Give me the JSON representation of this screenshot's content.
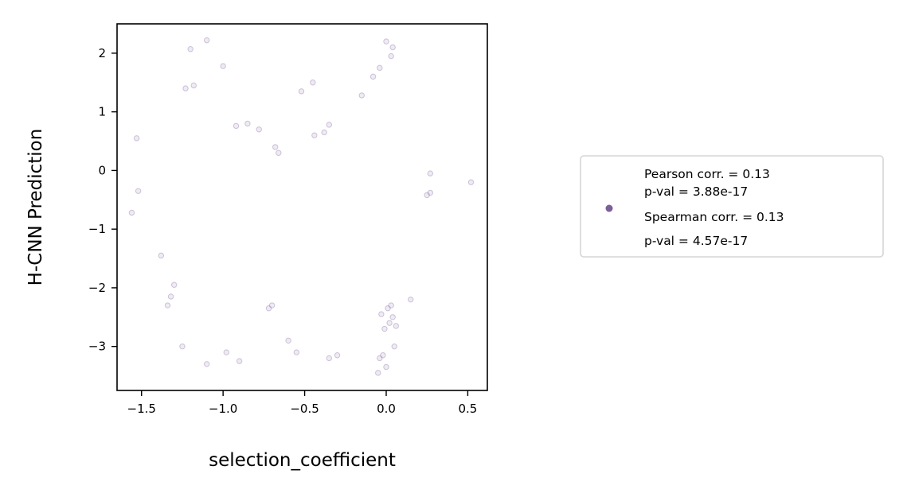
{
  "chart_data": {
    "type": "scatter",
    "xlabel": "selection_coefficient",
    "ylabel": "H-CNN Prediction",
    "xlim": [
      -1.65,
      0.62
    ],
    "ylim": [
      -3.75,
      2.5
    ],
    "x_ticks": [
      -1.5,
      -1.0,
      -0.5,
      0.0,
      0.5
    ],
    "x_tick_labels": [
      "−1.5",
      "−1.0",
      "−0.5",
      "0.0",
      "0.5"
    ],
    "y_ticks": [
      2,
      1,
      0,
      -1,
      -2,
      -3
    ],
    "y_tick_labels": [
      "2",
      "1",
      "0",
      "−1",
      "−2",
      "−3"
    ],
    "grid": false,
    "marker_color": "#7b5e9a",
    "legend": {
      "placement": "outside-right",
      "lines": [
        "Pearson corr. = 0.13",
        "p-val = 3.88e-17",
        "Spearman corr. = 0.13",
        "p-val = 4.57e-17"
      ]
    },
    "series": [
      {
        "points": [
          [
            -1.53,
            0.55
          ],
          [
            -1.56,
            -0.72
          ],
          [
            -1.52,
            -0.35
          ],
          [
            -1.38,
            -1.45
          ],
          [
            -1.34,
            -2.3
          ],
          [
            -1.1,
            2.22
          ],
          [
            -1.0,
            1.78
          ],
          [
            -1.23,
            1.4
          ],
          [
            -1.2,
            2.07
          ],
          [
            -1.18,
            1.45
          ],
          [
            -0.52,
            1.35
          ],
          [
            -0.45,
            1.5
          ],
          [
            -0.15,
            1.28
          ],
          [
            -0.08,
            1.6
          ],
          [
            -0.04,
            1.75
          ],
          [
            0.0,
            2.2
          ],
          [
            0.03,
            1.95
          ],
          [
            0.04,
            2.1
          ],
          [
            0.52,
            -0.2
          ],
          [
            0.27,
            -0.05
          ],
          [
            0.25,
            -0.42
          ],
          [
            0.27,
            -0.38
          ],
          [
            0.15,
            -2.2
          ],
          [
            -1.25,
            -3.0
          ],
          [
            -1.1,
            -3.3
          ],
          [
            -0.98,
            -3.1
          ],
          [
            -0.9,
            -3.25
          ],
          [
            -0.05,
            -3.45
          ],
          [
            0.0,
            -3.35
          ],
          [
            -0.02,
            -3.15
          ],
          [
            -0.04,
            -3.2
          ],
          [
            0.05,
            -3.0
          ],
          [
            -0.3,
            -3.15
          ],
          [
            -0.35,
            -3.2
          ],
          [
            -0.55,
            -3.1
          ],
          [
            -0.6,
            -2.9
          ],
          [
            -0.7,
            -2.3
          ],
          [
            -0.72,
            -2.35
          ],
          [
            -1.3,
            -1.95
          ],
          [
            -1.32,
            -2.15
          ],
          [
            -0.92,
            0.76
          ],
          [
            -0.85,
            0.8
          ],
          [
            -0.78,
            0.7
          ],
          [
            -0.68,
            0.4
          ],
          [
            -0.66,
            0.3
          ],
          [
            -0.44,
            0.6
          ],
          [
            -0.38,
            0.65
          ],
          [
            -0.35,
            0.78
          ],
          [
            0.04,
            -2.5
          ],
          [
            0.02,
            -2.6
          ],
          [
            -0.01,
            -2.7
          ],
          [
            0.01,
            -2.35
          ],
          [
            -0.03,
            -2.45
          ],
          [
            0.06,
            -2.65
          ],
          [
            0.03,
            -2.3
          ]
        ]
      }
    ]
  }
}
